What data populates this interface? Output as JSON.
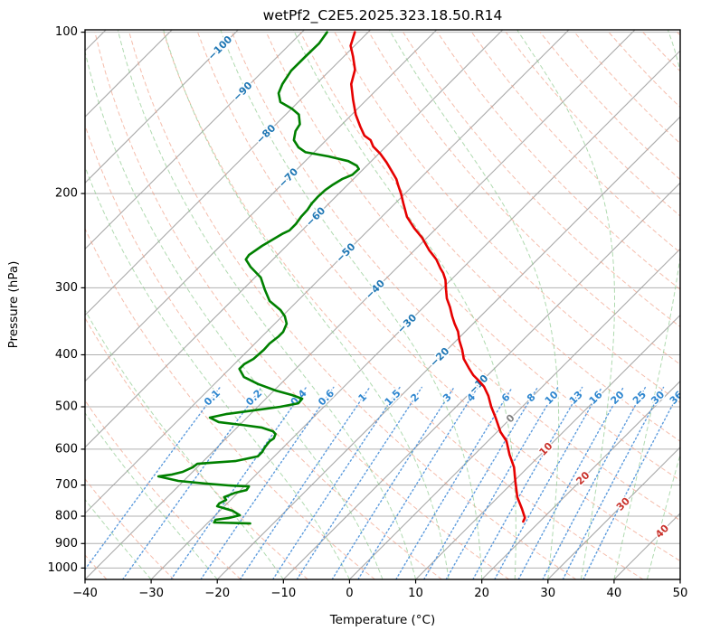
{
  "title": "wetPf2_C2E5.2025.323.18.50.R14",
  "axes": {
    "xlabel": "Temperature (°C)",
    "ylabel": "Pressure (hPa)",
    "x_ticks": [
      -40,
      -30,
      -20,
      -10,
      0,
      10,
      20,
      30,
      40,
      50
    ],
    "y_ticks": [
      100,
      200,
      300,
      400,
      500,
      600,
      700,
      800,
      900,
      1000
    ],
    "xlim": [
      -40,
      50
    ],
    "pressure_lim": [
      1050,
      99
    ],
    "skew_degrees": 45,
    "grid": true
  },
  "colors": {
    "temperature": "#e60000",
    "dewpoint": "#008000",
    "isotherm": "#9b9b9b",
    "grid": "#b0b0b0",
    "dry_adiabat": "#f0997f",
    "moist_adiabat": "#8fca8f",
    "mixing_ratio": "#4a90d9",
    "label_negative": "#1f77b4",
    "label_zero": "#808080",
    "label_positive": "#c9322b",
    "label_mixing": "#2e86cf",
    "frame": "#000000"
  },
  "chart_data": {
    "type": "skewt-log-p",
    "temperature_profile_p_t": [
      [
        100,
        -82
      ],
      [
        106,
        -80.6
      ],
      [
        111,
        -78.6
      ],
      [
        117.5,
        -76.3
      ],
      [
        125,
        -74.7
      ],
      [
        133.5,
        -72.1
      ],
      [
        142.5,
        -69.4
      ],
      [
        150,
        -66.9
      ],
      [
        156,
        -64.9
      ],
      [
        159,
        -63.3
      ],
      [
        163.5,
        -61.9
      ],
      [
        168.5,
        -59.8
      ],
      [
        175,
        -57.5
      ],
      [
        182,
        -55.3
      ],
      [
        188,
        -53.5
      ],
      [
        193,
        -52.3
      ],
      [
        200.5,
        -50.5
      ],
      [
        208.5,
        -48.8
      ],
      [
        221,
        -46.2
      ],
      [
        232,
        -43.4
      ],
      [
        242,
        -40.7
      ],
      [
        255.5,
        -37.7
      ],
      [
        265.5,
        -35.3
      ],
      [
        276,
        -33.3
      ],
      [
        281.5,
        -32.2
      ],
      [
        290,
        -30.8
      ],
      [
        302,
        -29.3
      ],
      [
        314,
        -27.8
      ],
      [
        326,
        -26
      ],
      [
        339,
        -24.3
      ],
      [
        350,
        -22.8
      ],
      [
        362,
        -21.1
      ],
      [
        376.5,
        -19.5
      ],
      [
        391.5,
        -17.7
      ],
      [
        407,
        -16.1
      ],
      [
        423,
        -14
      ],
      [
        436.5,
        -12.2
      ],
      [
        448.5,
        -10.3
      ],
      [
        459,
        -8.8
      ],
      [
        477,
        -6.8
      ],
      [
        500,
        -4.7
      ],
      [
        524,
        -2.4
      ],
      [
        557,
        0.5
      ],
      [
        579.5,
        2.8
      ],
      [
        614,
        5.3
      ],
      [
        648.5,
        7.9
      ],
      [
        690,
        10.3
      ],
      [
        737,
        12.9
      ],
      [
        775.5,
        15.4
      ],
      [
        806,
        17.2
      ],
      [
        819,
        17.5
      ]
    ],
    "dewpoint_profile_p_t": [
      [
        100,
        -86.2
      ],
      [
        105,
        -85.7
      ],
      [
        111,
        -85.8
      ],
      [
        118,
        -85.8
      ],
      [
        125,
        -85.1
      ],
      [
        130,
        -84.3
      ],
      [
        135,
        -82.7
      ],
      [
        139,
        -79.9
      ],
      [
        142.5,
        -78
      ],
      [
        148.5,
        -76.4
      ],
      [
        153,
        -76
      ],
      [
        159,
        -74.9
      ],
      [
        164,
        -73.1
      ],
      [
        167.5,
        -71.3
      ],
      [
        170.5,
        -67.2
      ],
      [
        174,
        -63.5
      ],
      [
        177.5,
        -61.5
      ],
      [
        180,
        -60.7
      ],
      [
        184.5,
        -60.8
      ],
      [
        188,
        -61.7
      ],
      [
        193,
        -62.3
      ],
      [
        197,
        -62.6
      ],
      [
        202.5,
        -62.7
      ],
      [
        209,
        -62.6
      ],
      [
        214.5,
        -62.3
      ],
      [
        221,
        -62.2
      ],
      [
        228,
        -61.9
      ],
      [
        234.5,
        -61.9
      ],
      [
        237.5,
        -62.4
      ],
      [
        250.5,
        -63.7
      ],
      [
        260.5,
        -64.3
      ],
      [
        265.5,
        -64.1
      ],
      [
        274,
        -62.3
      ],
      [
        287,
        -59.1
      ],
      [
        302,
        -56.7
      ],
      [
        317.5,
        -54.2
      ],
      [
        330,
        -51.2
      ],
      [
        339,
        -49.6
      ],
      [
        350,
        -48.2
      ],
      [
        362.5,
        -47.5
      ],
      [
        369.5,
        -47.5
      ],
      [
        381,
        -47.8
      ],
      [
        391.5,
        -47.7
      ],
      [
        407,
        -47.9
      ],
      [
        416.5,
        -48.5
      ],
      [
        425,
        -48.5
      ],
      [
        440,
        -46.6
      ],
      [
        453.5,
        -43.4
      ],
      [
        466.5,
        -39.7
      ],
      [
        475.5,
        -36.6
      ],
      [
        483,
        -34.5
      ],
      [
        492.5,
        -34.4
      ],
      [
        500,
        -36.6
      ],
      [
        510,
        -41
      ],
      [
        516,
        -43.7
      ],
      [
        524,
        -45.6
      ],
      [
        534,
        -43.6
      ],
      [
        540.5,
        -39.7
      ],
      [
        547,
        -36.2
      ],
      [
        555.5,
        -34
      ],
      [
        562,
        -33.2
      ],
      [
        573,
        -32.8
      ],
      [
        579.5,
        -33
      ],
      [
        595.5,
        -32.8
      ],
      [
        607,
        -32.5
      ],
      [
        619,
        -32.5
      ],
      [
        631.5,
        -35.2
      ],
      [
        636,
        -38.6
      ],
      [
        639,
        -40.5
      ],
      [
        648.5,
        -40.7
      ],
      [
        661.5,
        -41.5
      ],
      [
        669,
        -42.7
      ],
      [
        674.5,
        -44.5
      ],
      [
        687.5,
        -40.8
      ],
      [
        695.5,
        -36.3
      ],
      [
        701,
        -32.5
      ],
      [
        704,
        -29.3
      ],
      [
        715,
        -29.1
      ],
      [
        723.5,
        -30.4
      ],
      [
        737.5,
        -31.4
      ],
      [
        746,
        -30.7
      ],
      [
        757.5,
        -31.2
      ],
      [
        766.5,
        -31.1
      ],
      [
        781.5,
        -28.1
      ],
      [
        797,
        -26.3
      ],
      [
        806.5,
        -27.6
      ],
      [
        812.5,
        -29.3
      ],
      [
        822,
        -29.1
      ],
      [
        825.5,
        -23.5
      ]
    ],
    "isotherms_c": {
      "start": -120,
      "end": 50,
      "step": 10
    },
    "isotherm_labels": [
      {
        "t": -100,
        "p": 107
      },
      {
        "t": -90,
        "p": 129
      },
      {
        "t": -80,
        "p": 155
      },
      {
        "t": -70,
        "p": 187
      },
      {
        "t": -60,
        "p": 221
      },
      {
        "t": -50,
        "p": 258
      },
      {
        "t": -40,
        "p": 302
      },
      {
        "t": -30,
        "p": 350
      },
      {
        "t": -20,
        "p": 404
      },
      {
        "t": -10,
        "p": 454
      },
      {
        "t": 0,
        "p": 526
      },
      {
        "t": 10,
        "p": 600
      },
      {
        "t": 20,
        "p": 680
      },
      {
        "t": 30,
        "p": 760
      },
      {
        "t": 40,
        "p": 854
      }
    ],
    "dry_adiabats_theta_c": [
      -40,
      -30,
      -20,
      -10,
      0,
      10,
      20,
      30,
      40,
      50,
      60,
      70,
      80,
      90,
      100,
      110,
      120,
      130,
      140,
      150,
      160,
      170,
      180,
      190
    ],
    "moist_adiabats_t0_c": [
      -40,
      -30,
      -20,
      -10,
      0,
      5,
      10,
      15,
      20,
      25,
      30,
      35,
      40,
      45
    ],
    "mixing_ratio_g_kg": [
      "0.1",
      "0.2",
      "0.4",
      "0.6",
      "1",
      "1.5",
      "2",
      "3",
      "4",
      "6",
      "8",
      "10",
      "13",
      "16",
      "20",
      "25",
      "30",
      "36"
    ],
    "mixing_line_top_hpa": 455,
    "mixing_label_pressure_hpa": 481
  }
}
